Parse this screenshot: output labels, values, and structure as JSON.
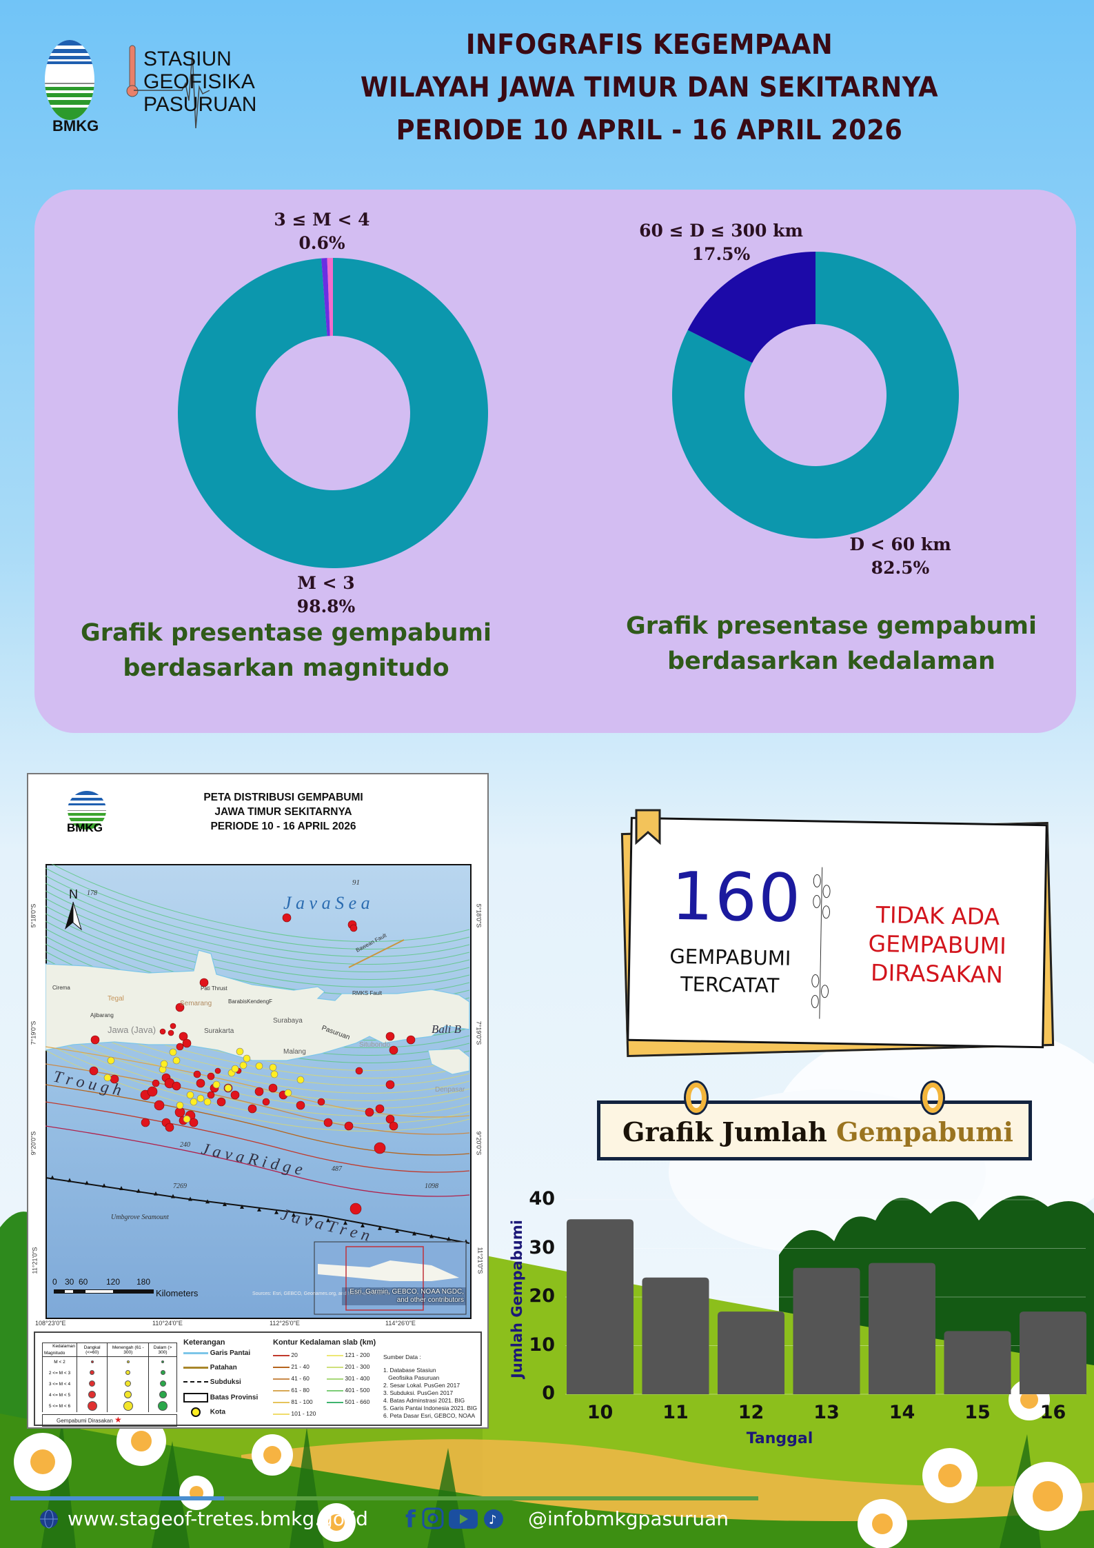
{
  "header": {
    "logo_org": "BMKG",
    "station_lines": [
      "STASIUN",
      "GEOFISIKA",
      "PASURUAN"
    ],
    "title_lines": [
      "INFOGRAFIS KEGEMPAAN",
      "WILAYAH JAWA TIMUR DAN SEKITARNYA",
      "PERIODE 10 APRIL - 16 APRIL 2026"
    ]
  },
  "chart_data": [
    {
      "type": "pie",
      "variant": "donut",
      "slices": [
        {
          "label": "M < 3",
          "value": 98.8,
          "value_label": "98.8%",
          "color": "#0c97ad"
        },
        {
          "label": "3 ≤ M < 4",
          "value": 0.6,
          "value_label": "0.6%",
          "color": "#6a2fe2"
        },
        {
          "label": "",
          "value": 0.6,
          "color": "#f26ccb"
        }
      ],
      "caption_lines": [
        "Grafik presentase gempabumi",
        "berdasarkan magnitudo"
      ]
    },
    {
      "type": "pie",
      "variant": "donut",
      "slices": [
        {
          "label": "D < 60 km",
          "value": 82.5,
          "value_label": "82.5%",
          "color": "#0c97ad"
        },
        {
          "label": "60 ≤ D ≤ 300 km",
          "value": 17.5,
          "value_label": "17.5%",
          "color": "#1c0aa8"
        }
      ],
      "caption_lines": [
        "Grafik presentase gempabumi",
        "berdasarkan kedalaman"
      ]
    },
    {
      "type": "bar",
      "title": "Grafik Jumlah Gempabumi",
      "title_parts": [
        "Grafik Jumlah",
        "Gempabumi"
      ],
      "categories": [
        "10",
        "11",
        "12",
        "13",
        "14",
        "15",
        "16"
      ],
      "values": [
        36,
        24,
        17,
        26,
        27,
        13,
        17
      ],
      "xlabel": "Tanggal",
      "ylabel": "Jumlah Gempabumi",
      "ylim": [
        0,
        40
      ],
      "yticks": [
        "0",
        "10",
        "20",
        "30",
        "40"
      ],
      "bar_color": "#555555",
      "grid": true
    }
  ],
  "summary": {
    "count": "160",
    "count_lines": [
      "GEMPABUMI",
      "TERCATAT"
    ],
    "felt_lines": [
      "TIDAK ADA",
      "GEMPABUMI",
      "DIRASAKAN"
    ],
    "count_color": "#1b1a9e",
    "felt_color": "#d2141c"
  },
  "map": {
    "logo_org": "BMKG",
    "title_lines": [
      "PETA DISTRIBUSI GEMPABUMI",
      "JAWA TIMUR SEKITARNYA",
      "PERIODE 10 - 16 APRIL 2026"
    ],
    "north": "N",
    "labels": {
      "java_sea": "J a v a   S e a",
      "trough": "T r o u g h",
      "java_ridge": "J a v a   R i d g e",
      "java_trench": "J a v a   T r e n",
      "jawa": "Jawa (Java)",
      "surabaya": "Surabaya",
      "semarang": "Semarang",
      "surakarta": "Surakarta",
      "malang": "Malang",
      "pasuruan": "Pasuruan",
      "situbondo": "Situbondo",
      "tegal": "Tegal",
      "bali": "Bali B",
      "denpasar": "Denpasar",
      "bawean": "Bawean Fault",
      "rmks": "RMKS Fault",
      "pati": "Pati Thrust",
      "kendeng": "BarabisKendengF",
      "ajibarang": "Ajibarang",
      "cirema": "Cirema",
      "umbgrove": "Umbgrove Seamount",
      "d91": "91",
      "d178": "178",
      "d240": "240",
      "d487": "487",
      "d7269": "7269",
      "d1098": "1098",
      "sources": "Sources: Esri, GEBCO, Geonames.org, and NCDC and other co",
      "inset_credit": "Esri, Garmin, GEBCO, NOAA NGDC, and other contributors"
    },
    "lon_ticks": [
      "108°23'0\"E",
      "110°24'0\"E",
      "112°25'0\"E",
      "114°26'0\"E"
    ],
    "lat_ticks": [
      "5°18'0\"S",
      "7°19'0\"S",
      "9°20'0\"S",
      "11°21'0\"S"
    ],
    "scale_ticks": [
      "0",
      "30",
      "60",
      "120",
      "180"
    ],
    "scale_unit": "Kilometers",
    "legend": {
      "table_corner_top": "Kedalaman",
      "table_corner_bottom": "Magnitudo",
      "table_cols": [
        "Dangkal (<=60)",
        "Menengah (61 - 300)",
        "Dalam (> 300)"
      ],
      "table_rows": [
        "M < 2",
        "2 <= M < 3",
        "3 <= M < 4",
        "4 <= M < 5",
        "5 <= M < 6"
      ],
      "felt": "Gempabumi Dirasakan",
      "keterangan_title": "Keterangan",
      "keterangan": [
        "Garis Pantai",
        "Patahan",
        "Subduksi",
        "Batas Provinsi",
        "Kota"
      ],
      "kontur_title": "Kontur Kedalaman slab (km)",
      "kontur": [
        "20",
        "21 - 40",
        "41 - 60",
        "61 - 80",
        "81 - 100",
        "101 - 120",
        "121 - 200",
        "201 - 300",
        "301 - 400",
        "401 - 500",
        "501 - 660"
      ],
      "kontur_colors": [
        "#c0392b",
        "#b5651d",
        "#c98a4a",
        "#d8a854",
        "#e6c45a",
        "#f0dc6a",
        "#eee774",
        "#cfe07a",
        "#a8d878",
        "#7ccd77",
        "#3fb46e"
      ],
      "sumber_title": "Sumber Data :",
      "sumber": [
        "1. Database Stasiun",
        "   Geofisika Pasuruan",
        "2. Sesar Lokal. PusGen 2017",
        "3. Subduksi. PusGen 2017",
        "4. Batas Adminstrasi 2021. BIG",
        "5. Garis Pantai Indonesia 2021. BIG",
        "6. Peta Dasar Esri, GEBCO, NOAA"
      ]
    }
  },
  "footer": {
    "website": "www.stageof-tretes.bmkg.go.id",
    "handle": "@infobmkgpasuruan",
    "icons": [
      "globe-icon",
      "facebook-icon",
      "instagram-icon",
      "youtube-icon",
      "tiktok-icon"
    ]
  }
}
